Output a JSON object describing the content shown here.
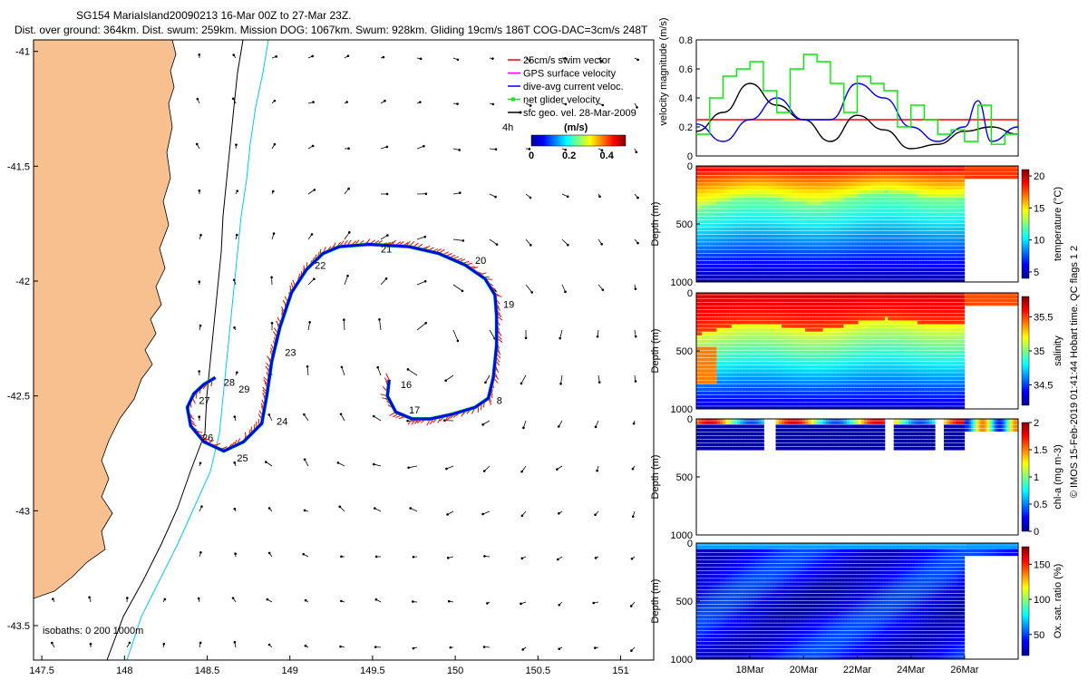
{
  "header": {
    "title_line1": "SG154 MariaIsland20090213 16-Mar 00Z to 27-Mar 23Z.",
    "title_line2": "Dist. over ground: 364km. Dist. swum: 259km. Mission DOG: 1067km. Swum: 928km. Gliding 19cm/s 186T COG-DAC=3cm/s 248T"
  },
  "side_note": "© IMOS 15-Feb-2019 01:41:44 Hobart time. QC flags 1 2",
  "colors": {
    "land": "#f9c08f",
    "isobath_0": "#000000",
    "isobath_200": "#000000",
    "isobath_1000": "#00c8ff",
    "swim_vector": "#ff0000",
    "gps_velocity": "#ff00ff",
    "dive_avg_current": "#0000ff",
    "net_glider_velocity": "#00ee00",
    "sfc_geo_velocity": "#000000"
  },
  "chart_data": [
    {
      "type": "map",
      "xlim": [
        147.45,
        151.2
      ],
      "ylim": [
        -43.65,
        -40.95
      ],
      "xticks": [
        "147.5",
        "148",
        "148.5",
        "149",
        "149.5",
        "150",
        "150.5",
        "151"
      ],
      "xtick_values": [
        147.5,
        148,
        148.5,
        149,
        149.5,
        150,
        150.5,
        151
      ],
      "yticks": [
        "-41",
        "-41.5",
        "-42",
        "-42.5",
        "-43",
        "-43.5"
      ],
      "ytick_values": [
        -41,
        -41.5,
        -42,
        -42.5,
        -43,
        -43.5
      ],
      "legend": [
        {
          "label": "25cm/s swim vector",
          "color": "#ff0000",
          "marker": "line"
        },
        {
          "label": "GPS surface velocity",
          "color": "#ff00ff",
          "marker": "line"
        },
        {
          "label": "dive-avg current veloc.",
          "color": "#0000ff",
          "marker": "line"
        },
        {
          "label": "net glider velocity",
          "color": "#00ee00",
          "marker": "square-line"
        },
        {
          "label": "sfc geo. vel. 28-Mar-2009",
          "color": "#000000",
          "marker": "arrow"
        }
      ],
      "speed_colorbar": {
        "label": "(m/s)",
        "scale_note": "4h",
        "ticks": [
          "0",
          "0.2",
          "0.4"
        ],
        "range": [
          0,
          0.5
        ]
      },
      "isobath_label": "isobaths: 0   200  1000m",
      "track": [
        [
          149.6,
          -42.43
        ],
        [
          149.59,
          -42.5
        ],
        [
          149.64,
          -42.57
        ],
        [
          149.74,
          -42.6
        ],
        [
          149.85,
          -42.6
        ],
        [
          149.98,
          -42.58
        ],
        [
          150.12,
          -42.55
        ],
        [
          150.2,
          -42.51
        ],
        [
          150.23,
          -42.42
        ],
        [
          150.25,
          -42.28
        ],
        [
          150.25,
          -42.15
        ],
        [
          150.24,
          -42.06
        ],
        [
          150.18,
          -41.99
        ],
        [
          150.06,
          -41.93
        ],
        [
          149.9,
          -41.88
        ],
        [
          149.72,
          -41.85
        ],
        [
          149.48,
          -41.84
        ],
        [
          149.3,
          -41.85
        ],
        [
          149.2,
          -41.88
        ],
        [
          149.1,
          -41.95
        ],
        [
          149.01,
          -42.05
        ],
        [
          148.94,
          -42.2
        ],
        [
          148.89,
          -42.35
        ],
        [
          148.86,
          -42.5
        ],
        [
          148.83,
          -42.62
        ],
        [
          148.72,
          -42.7
        ],
        [
          148.6,
          -42.74
        ],
        [
          148.48,
          -42.7
        ],
        [
          148.4,
          -42.63
        ],
        [
          148.38,
          -42.55
        ],
        [
          148.42,
          -42.49
        ],
        [
          148.48,
          -42.45
        ],
        [
          148.55,
          -42.42
        ]
      ],
      "day_labels": [
        {
          "text": "16",
          "lon": 149.67,
          "lat": -42.45
        },
        {
          "text": "17",
          "lon": 149.72,
          "lat": -42.56
        },
        {
          "text": "8",
          "lon": 150.25,
          "lat": -42.52
        },
        {
          "text": "19",
          "lon": 150.29,
          "lat": -42.1
        },
        {
          "text": "20",
          "lon": 150.12,
          "lat": -41.91
        },
        {
          "text": "21",
          "lon": 149.55,
          "lat": -41.86
        },
        {
          "text": "22",
          "lon": 149.15,
          "lat": -41.93
        },
        {
          "text": "23",
          "lon": 148.97,
          "lat": -42.31
        },
        {
          "text": "24",
          "lon": 148.92,
          "lat": -42.61
        },
        {
          "text": "25",
          "lon": 148.68,
          "lat": -42.77
        },
        {
          "text": "26",
          "lon": 148.47,
          "lat": -42.68
        },
        {
          "text": "27",
          "lon": 148.45,
          "lat": -42.52
        },
        {
          "text": "28",
          "lon": 148.6,
          "lat": -42.44
        },
        {
          "text": "29",
          "lon": 148.69,
          "lat": -42.47
        }
      ]
    },
    {
      "type": "line",
      "ylabel": "velocity magnitude (m/s)",
      "ylim": [
        0,
        0.8
      ],
      "yticks": [
        "0",
        "0.2",
        "0.4",
        "0.6",
        "0.8"
      ],
      "ytick_values": [
        0,
        0.2,
        0.4,
        0.6,
        0.8
      ],
      "xlim": [
        16,
        28
      ],
      "series": [
        {
          "color": "#ff0000",
          "x": [
            16,
            28
          ],
          "values": [
            0.25,
            0.25
          ]
        },
        {
          "color": "#000000",
          "x": [
            16,
            17,
            18,
            19,
            20,
            21,
            22,
            23,
            24,
            25,
            26,
            27,
            28
          ],
          "values": [
            0.17,
            0.3,
            0.5,
            0.35,
            0.25,
            0.1,
            0.28,
            0.18,
            0.05,
            0.08,
            0.17,
            0.2,
            0.15
          ]
        },
        {
          "color": "#0000ff",
          "x": [
            16,
            17,
            18,
            19,
            20,
            21,
            22,
            23,
            24,
            25,
            26,
            26.5,
            27,
            28
          ],
          "values": [
            0.22,
            0.1,
            0.25,
            0.4,
            0.25,
            0.25,
            0.5,
            0.4,
            0.2,
            0.1,
            0.2,
            0.38,
            0.1,
            0.2
          ]
        },
        {
          "color": "#00ee00",
          "x": [
            16,
            16.5,
            17,
            17.5,
            18,
            18.5,
            19,
            19.5,
            20,
            20.5,
            21,
            21.5,
            22,
            22.5,
            23,
            23.5,
            24,
            24.5,
            25,
            25.5,
            26,
            26.5,
            27,
            27.5,
            28
          ],
          "values": [
            0.15,
            0.4,
            0.55,
            0.6,
            0.65,
            0.45,
            0.3,
            0.6,
            0.7,
            0.65,
            0.5,
            0.3,
            0.55,
            0.5,
            0.45,
            0.2,
            0.35,
            0.25,
            0.15,
            0.18,
            0.1,
            0.35,
            0.08,
            0.15,
            0.18
          ]
        }
      ]
    },
    {
      "type": "heatmap",
      "ylabel": "Depth (m)",
      "clabel": "temperature (°C)",
      "yticks": [
        "0",
        "500",
        "1000"
      ],
      "ylim": [
        0,
        1000
      ],
      "ctick_labels": [
        "5",
        "10",
        "15",
        "20"
      ],
      "ctick_values": [
        5,
        10,
        15,
        20
      ],
      "clim": [
        4,
        21
      ]
    },
    {
      "type": "heatmap",
      "ylabel": "Depth (m)",
      "clabel": "salinity",
      "yticks": [
        "0",
        "500",
        "1000"
      ],
      "ylim": [
        0,
        1000
      ],
      "ctick_labels": [
        "34.5",
        "35",
        "35.5"
      ],
      "ctick_values": [
        34.5,
        35,
        35.5
      ],
      "clim": [
        34.2,
        35.8
      ]
    },
    {
      "type": "heatmap",
      "ylabel": "Depth (m)",
      "clabel": "chl-a (mg m-3)",
      "yticks": [
        "0",
        "500",
        "1000"
      ],
      "ylim": [
        0,
        1000
      ],
      "ctick_labels": [
        "0",
        "0.5",
        "1",
        "1.5",
        "2"
      ],
      "ctick_values": [
        0,
        0.5,
        1,
        1.5,
        2
      ],
      "clim": [
        0,
        2
      ]
    },
    {
      "type": "heatmap",
      "ylabel": "Depth (m)",
      "clabel": "Ox. sat. ratio (%)",
      "yticks": [
        "0",
        "500",
        "1000"
      ],
      "ylim": [
        0,
        1000
      ],
      "ctick_labels": [
        "50",
        "100",
        "150"
      ],
      "ctick_values": [
        50,
        100,
        150
      ],
      "clim": [
        20,
        175
      ],
      "xtick_labels": [
        "18Mar",
        "20Mar",
        "22Mar",
        "24Mar",
        "26Mar"
      ],
      "xtick_values": [
        18,
        20,
        22,
        24,
        26
      ],
      "xlim": [
        16,
        28
      ]
    }
  ]
}
